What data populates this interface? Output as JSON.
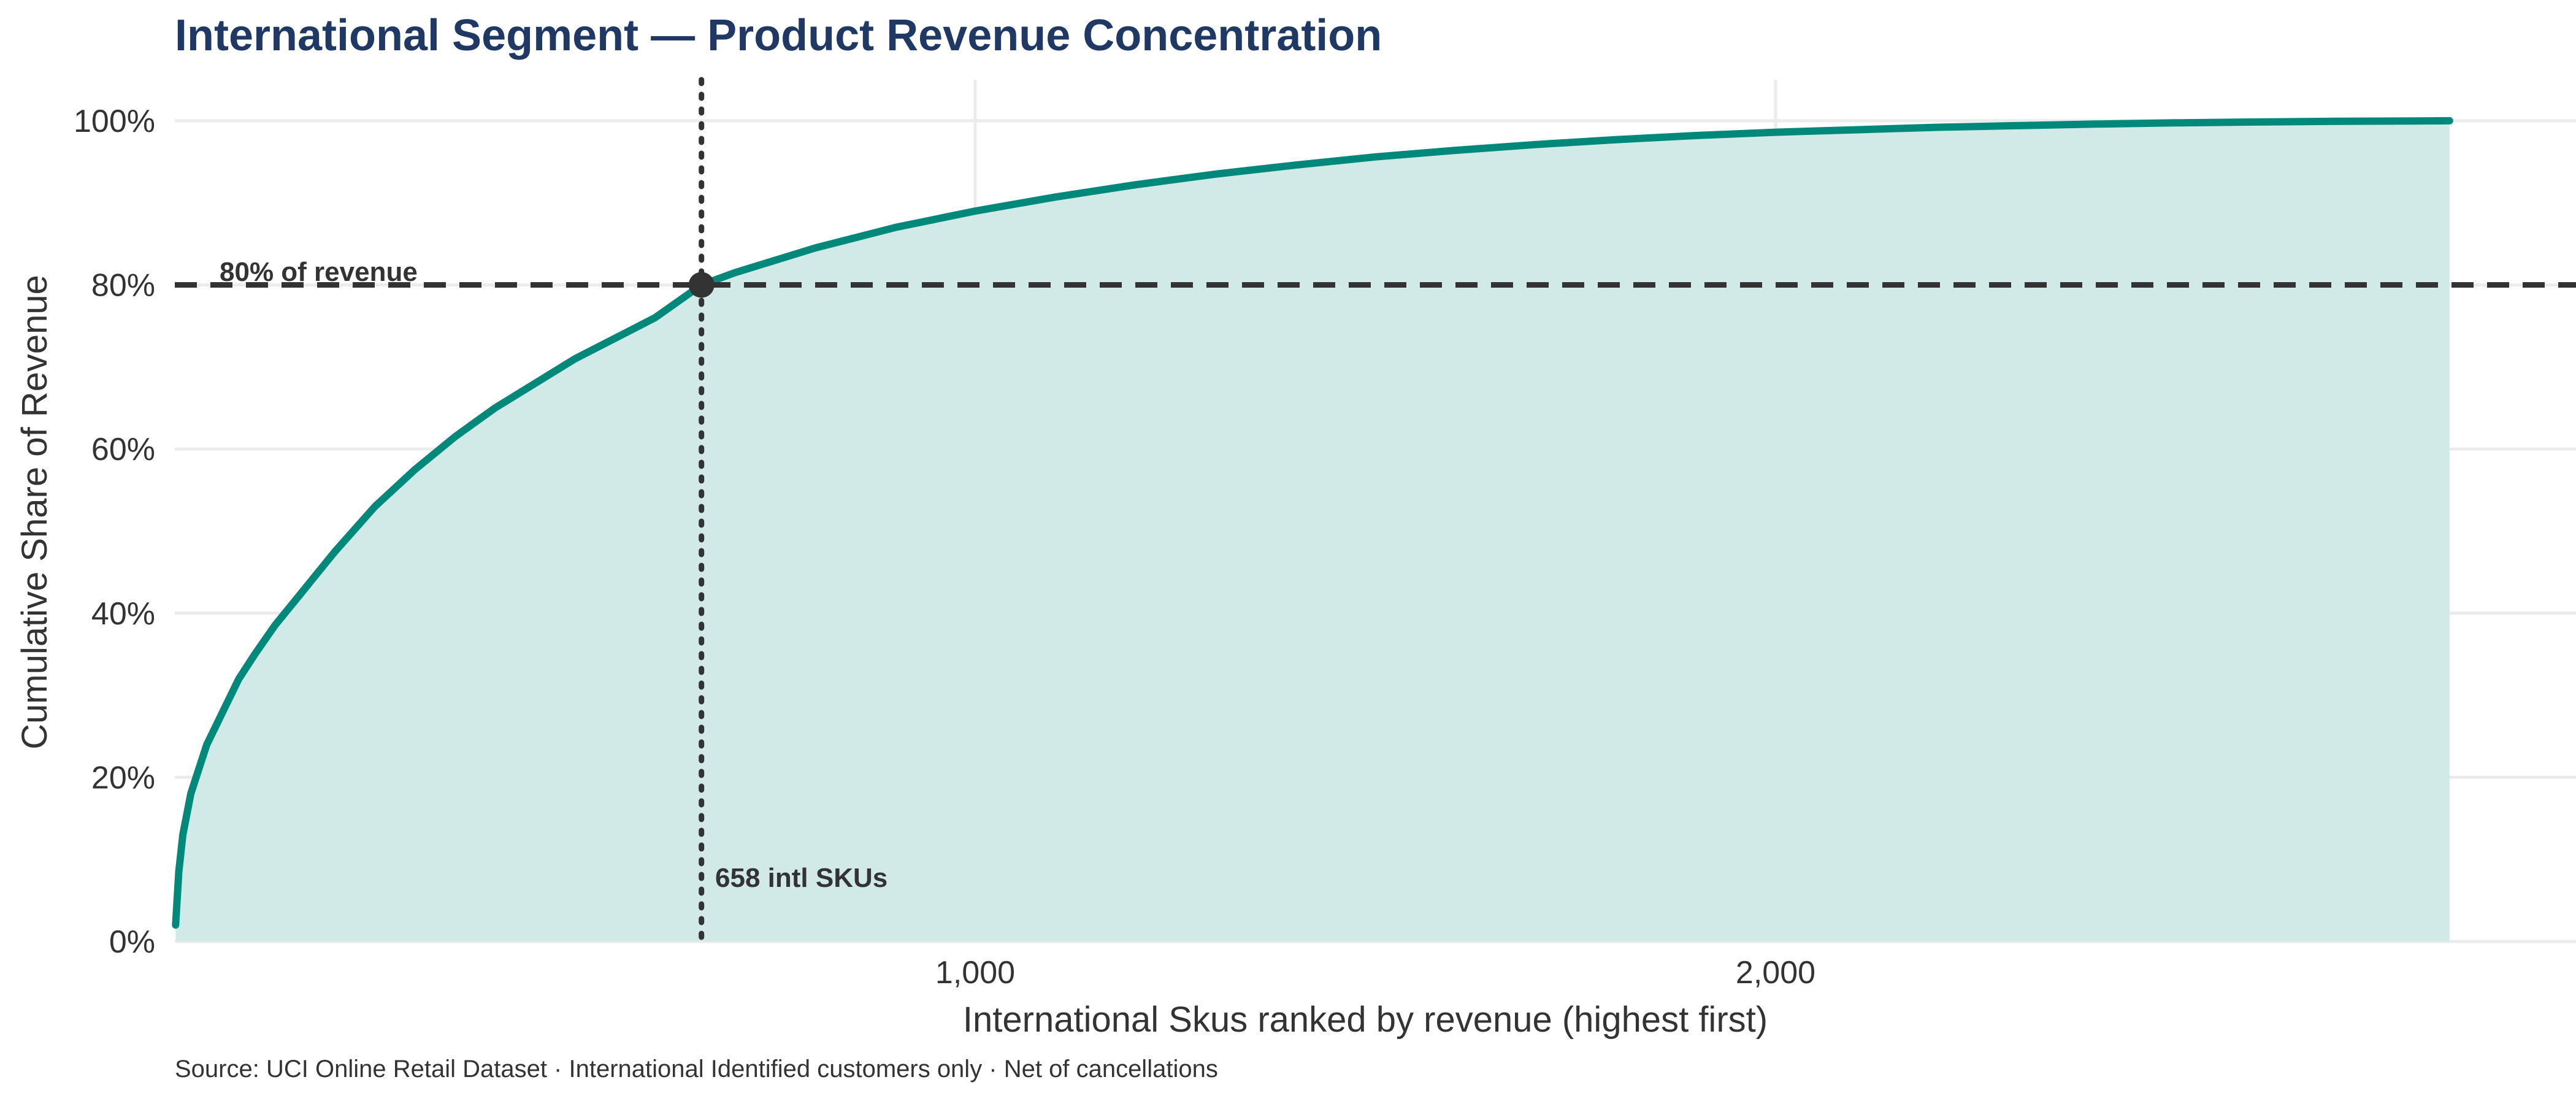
{
  "chart_data": {
    "type": "area",
    "title": "International Segment — Product Revenue Concentration",
    "xlabel": "International Skus ranked by revenue (highest first)",
    "ylabel": "Cumulative Share of Revenue",
    "source": "Source: UCI Online Retail Dataset · International Identified customers only · Net of cancellations",
    "xlim": [
      0,
      3000
    ],
    "ylim": [
      0,
      1.05
    ],
    "x_ticks": [
      1000,
      2000
    ],
    "x_tick_labels": [
      "1,000",
      "2,000"
    ],
    "y_ticks": [
      0,
      0.2,
      0.4,
      0.6,
      0.8,
      1.0
    ],
    "y_tick_labels": [
      "0%",
      "20%",
      "40%",
      "60%",
      "80%",
      "100%"
    ],
    "grid": true,
    "colors": {
      "line": "#00897b",
      "fill": "#d1eae7",
      "title": "#1f3864",
      "reference": "#333333"
    },
    "series": [
      {
        "x": [
          1,
          5,
          10,
          20,
          30,
          40,
          50,
          60,
          80,
          100,
          125,
          150,
          175,
          200,
          250,
          300,
          350,
          400,
          450,
          500,
          550,
          600,
          658,
          700,
          750,
          800,
          900,
          1000,
          1100,
          1200,
          1300,
          1400,
          1500,
          1600,
          1700,
          1800,
          1900,
          2000,
          2100,
          2200,
          2300,
          2400,
          2500,
          2600,
          2700,
          2800,
          2842
        ],
        "y": [
          0.02,
          0.085,
          0.13,
          0.18,
          0.21,
          0.24,
          0.26,
          0.28,
          0.32,
          0.35,
          0.385,
          0.415,
          0.445,
          0.475,
          0.53,
          0.575,
          0.615,
          0.65,
          0.68,
          0.71,
          0.735,
          0.76,
          0.8,
          0.815,
          0.83,
          0.845,
          0.87,
          0.89,
          0.907,
          0.922,
          0.935,
          0.946,
          0.956,
          0.964,
          0.971,
          0.977,
          0.982,
          0.986,
          0.989,
          0.992,
          0.994,
          0.996,
          0.9975,
          0.9985,
          0.9993,
          0.9998,
          1.0
        ]
      }
    ],
    "reference_line": {
      "y": 0.8,
      "label": "80% of revenue"
    },
    "marker": {
      "x": 658,
      "y": 0.8,
      "label": "658 intl SKUs"
    }
  }
}
